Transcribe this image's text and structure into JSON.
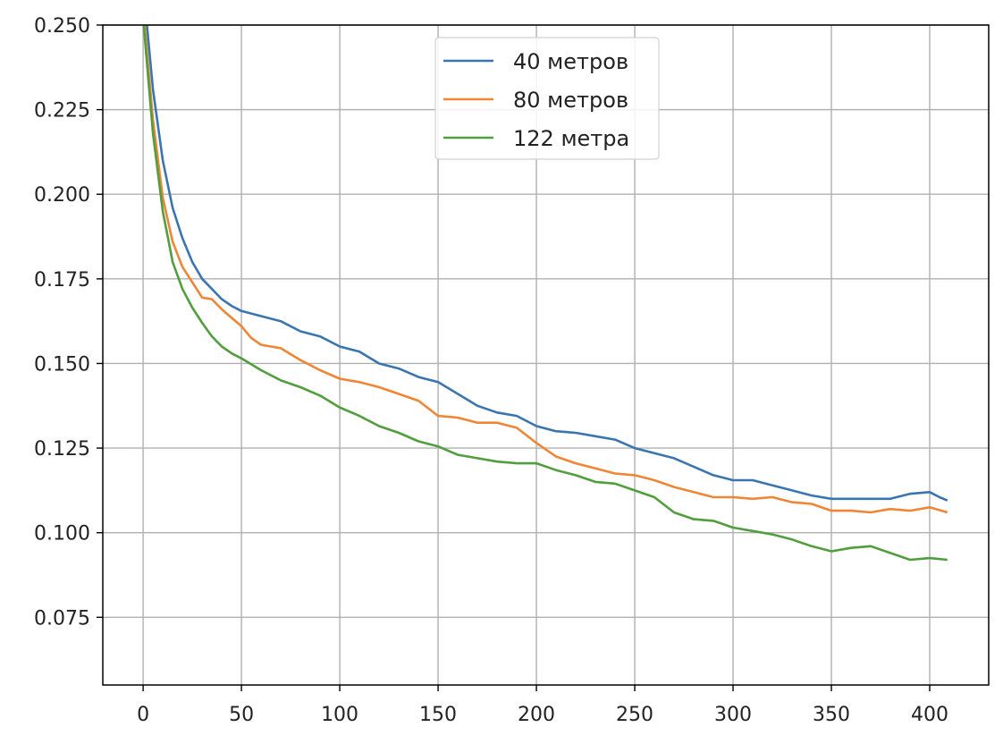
{
  "chart_data": {
    "type": "line",
    "title": "",
    "xlabel": "",
    "ylabel": "",
    "xlim": [
      -20.5,
      430
    ],
    "ylim": [
      0.055,
      0.25
    ],
    "x_ticks": [
      0,
      50,
      100,
      150,
      200,
      250,
      300,
      350,
      400
    ],
    "y_ticks": [
      0.075,
      0.1,
      0.125,
      0.15,
      0.175,
      0.2,
      0.225,
      0.25
    ],
    "x_tick_labels": [
      "0",
      "50",
      "100",
      "150",
      "200",
      "250",
      "300",
      "350",
      "400"
    ],
    "y_tick_labels": [
      "0.075",
      "0.100",
      "0.125",
      "0.150",
      "0.175",
      "0.200",
      "0.225",
      "0.250"
    ],
    "grid": true,
    "legend_position": "top-center",
    "series": [
      {
        "name": "40 метров",
        "color": "#3b75af",
        "points": [
          [
            0,
            0.262
          ],
          [
            5,
            0.231
          ],
          [
            10,
            0.21
          ],
          [
            15,
            0.196
          ],
          [
            20,
            0.187
          ],
          [
            25,
            0.18
          ],
          [
            30,
            0.175
          ],
          [
            35,
            0.172
          ],
          [
            40,
            0.169
          ],
          [
            45,
            0.167
          ],
          [
            50,
            0.1655
          ],
          [
            60,
            0.164
          ],
          [
            70,
            0.1625
          ],
          [
            80,
            0.1595
          ],
          [
            90,
            0.158
          ],
          [
            100,
            0.155
          ],
          [
            110,
            0.1535
          ],
          [
            120,
            0.15
          ],
          [
            130,
            0.1485
          ],
          [
            140,
            0.146
          ],
          [
            150,
            0.1445
          ],
          [
            160,
            0.141
          ],
          [
            170,
            0.1375
          ],
          [
            180,
            0.1355
          ],
          [
            190,
            0.1345
          ],
          [
            200,
            0.1315
          ],
          [
            210,
            0.13
          ],
          [
            220,
            0.1295
          ],
          [
            230,
            0.1285
          ],
          [
            240,
            0.1275
          ],
          [
            250,
            0.125
          ],
          [
            260,
            0.1235
          ],
          [
            270,
            0.122
          ],
          [
            280,
            0.1195
          ],
          [
            290,
            0.117
          ],
          [
            300,
            0.1155
          ],
          [
            310,
            0.1155
          ],
          [
            320,
            0.114
          ],
          [
            330,
            0.1125
          ],
          [
            340,
            0.111
          ],
          [
            350,
            0.11
          ],
          [
            360,
            0.11
          ],
          [
            370,
            0.11
          ],
          [
            380,
            0.11
          ],
          [
            390,
            0.1115
          ],
          [
            400,
            0.112
          ],
          [
            405,
            0.1105
          ],
          [
            409,
            0.1095
          ]
        ]
      },
      {
        "name": "80 метров",
        "color": "#ef8636",
        "points": [
          [
            0,
            0.255
          ],
          [
            5,
            0.222
          ],
          [
            10,
            0.199
          ],
          [
            15,
            0.186
          ],
          [
            20,
            0.1785
          ],
          [
            25,
            0.174
          ],
          [
            30,
            0.1695
          ],
          [
            35,
            0.169
          ],
          [
            40,
            0.166
          ],
          [
            45,
            0.1635
          ],
          [
            50,
            0.161
          ],
          [
            55,
            0.1575
          ],
          [
            60,
            0.1555
          ],
          [
            70,
            0.1545
          ],
          [
            80,
            0.151
          ],
          [
            90,
            0.148
          ],
          [
            100,
            0.1455
          ],
          [
            110,
            0.1445
          ],
          [
            120,
            0.143
          ],
          [
            130,
            0.141
          ],
          [
            140,
            0.139
          ],
          [
            150,
            0.1345
          ],
          [
            160,
            0.134
          ],
          [
            170,
            0.1325
          ],
          [
            180,
            0.1325
          ],
          [
            190,
            0.131
          ],
          [
            200,
            0.1265
          ],
          [
            210,
            0.1225
          ],
          [
            220,
            0.1205
          ],
          [
            230,
            0.119
          ],
          [
            240,
            0.1175
          ],
          [
            250,
            0.117
          ],
          [
            260,
            0.1155
          ],
          [
            270,
            0.1135
          ],
          [
            280,
            0.112
          ],
          [
            290,
            0.1105
          ],
          [
            300,
            0.1105
          ],
          [
            310,
            0.11
          ],
          [
            320,
            0.1105
          ],
          [
            330,
            0.109
          ],
          [
            340,
            0.1085
          ],
          [
            350,
            0.1065
          ],
          [
            360,
            0.1065
          ],
          [
            370,
            0.106
          ],
          [
            380,
            0.107
          ],
          [
            390,
            0.1065
          ],
          [
            400,
            0.1075
          ],
          [
            409,
            0.106
          ]
        ]
      },
      {
        "name": "122 метра",
        "color": "#519e3e",
        "points": [
          [
            0,
            0.252
          ],
          [
            5,
            0.218
          ],
          [
            10,
            0.195
          ],
          [
            15,
            0.18
          ],
          [
            20,
            0.172
          ],
          [
            25,
            0.1665
          ],
          [
            30,
            0.162
          ],
          [
            35,
            0.158
          ],
          [
            40,
            0.155
          ],
          [
            45,
            0.153
          ],
          [
            50,
            0.1515
          ],
          [
            60,
            0.148
          ],
          [
            70,
            0.145
          ],
          [
            80,
            0.143
          ],
          [
            90,
            0.1405
          ],
          [
            100,
            0.137
          ],
          [
            110,
            0.1345
          ],
          [
            120,
            0.1315
          ],
          [
            130,
            0.1295
          ],
          [
            140,
            0.127
          ],
          [
            150,
            0.1255
          ],
          [
            160,
            0.123
          ],
          [
            170,
            0.122
          ],
          [
            180,
            0.121
          ],
          [
            190,
            0.1205
          ],
          [
            200,
            0.1205
          ],
          [
            210,
            0.1185
          ],
          [
            220,
            0.117
          ],
          [
            230,
            0.115
          ],
          [
            240,
            0.1145
          ],
          [
            250,
            0.1125
          ],
          [
            260,
            0.1105
          ],
          [
            270,
            0.106
          ],
          [
            280,
            0.104
          ],
          [
            290,
            0.1035
          ],
          [
            300,
            0.1015
          ],
          [
            310,
            0.1005
          ],
          [
            320,
            0.0995
          ],
          [
            330,
            0.098
          ],
          [
            340,
            0.096
          ],
          [
            350,
            0.0945
          ],
          [
            360,
            0.0955
          ],
          [
            370,
            0.096
          ],
          [
            380,
            0.094
          ],
          [
            390,
            0.092
          ],
          [
            400,
            0.0925
          ],
          [
            409,
            0.092
          ]
        ]
      }
    ]
  }
}
